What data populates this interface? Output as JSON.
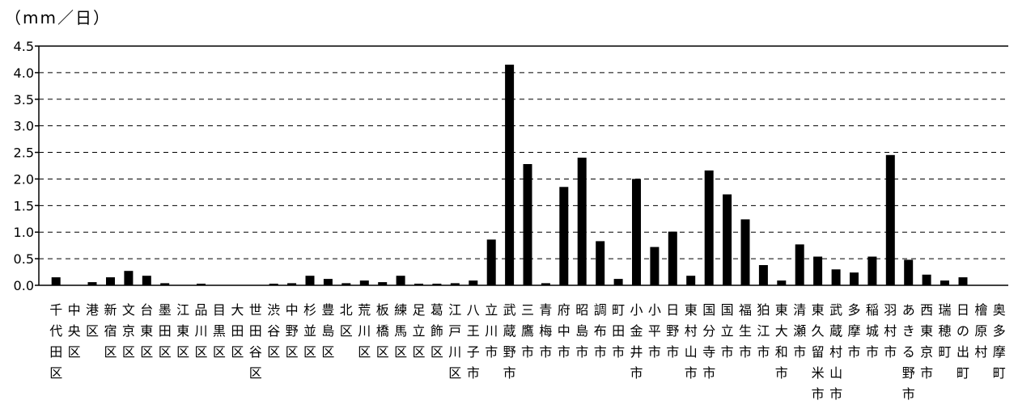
{
  "chart_data": {
    "type": "bar",
    "unit_label": "（mm／日）",
    "ylim": [
      0,
      4.5
    ],
    "yticks": [
      "0.0",
      "0.5",
      "1.0",
      "1.5",
      "2.0",
      "2.5",
      "3.0",
      "3.5",
      "4.0",
      "4.5"
    ],
    "grid": true,
    "categories": [
      "千代田区",
      "中央区",
      "港区",
      "新宿区",
      "文京区",
      "台東区",
      "墨田区",
      "江東区",
      "品川区",
      "目黒区",
      "大田区",
      "世田谷区",
      "渋谷区",
      "中野区",
      "杉並区",
      "豊島区",
      "北区",
      "荒川区",
      "板橋区",
      "練馬区",
      "足立区",
      "葛飾区",
      "江戸川区",
      "八王子市",
      "立川市",
      "武蔵野市",
      "三鷹市",
      "青梅市",
      "府中市",
      "昭島市",
      "調布市",
      "町田市",
      "小金井市",
      "小平市",
      "日野市",
      "東村山市",
      "国分寺市",
      "国立市",
      "福生市",
      "狛江市",
      "東大和市",
      "清瀬市",
      "東久留米市",
      "武蔵村山市",
      "多摩市",
      "稲城市",
      "羽村市",
      "あきる野市",
      "西東京市",
      "瑞穂町",
      "日の出町",
      "檜原村",
      "奥多摩町"
    ],
    "values": [
      0.15,
      0,
      0.06,
      0.15,
      0.27,
      0.18,
      0.04,
      0,
      0.03,
      0,
      0,
      0,
      0.03,
      0.04,
      0.18,
      0.12,
      0.04,
      0.09,
      0.06,
      0.18,
      0.03,
      0.03,
      0.04,
      0.09,
      0.86,
      4.15,
      2.28,
      0.04,
      1.85,
      2.4,
      0.83,
      0.12,
      2.0,
      0.72,
      1.01,
      0.18,
      2.16,
      1.71,
      1.24,
      0.38,
      0.09,
      0.77,
      0.54,
      0.3,
      0.24,
      0.54,
      2.45,
      0.48,
      0.2,
      0.09,
      0.15,
      0,
      0
    ]
  }
}
